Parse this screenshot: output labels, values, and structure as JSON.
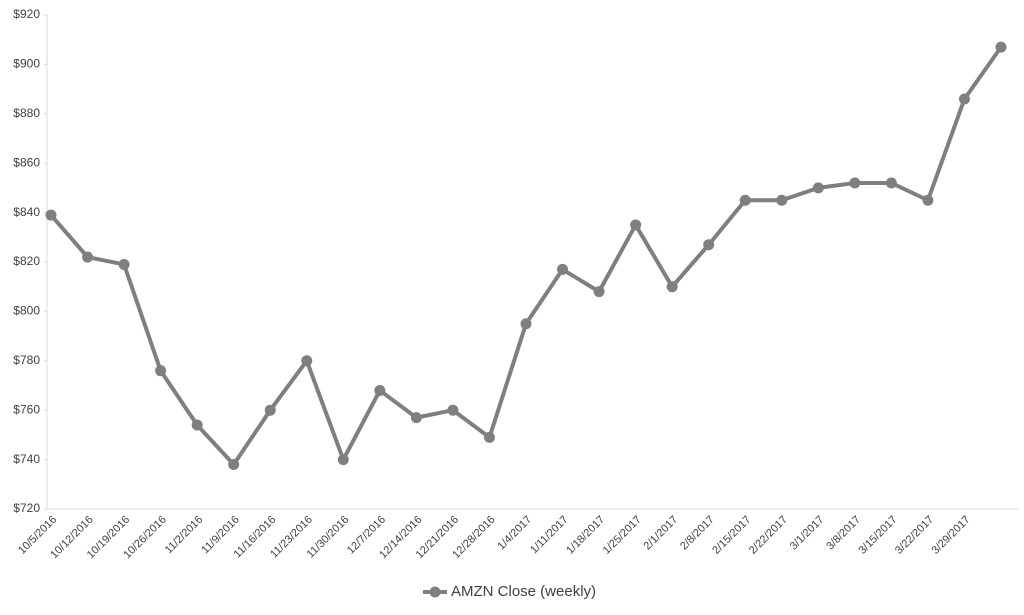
{
  "chart_data": {
    "type": "line",
    "categories": [
      "10/5/2016",
      "10/12/2016",
      "10/19/2016",
      "10/26/2016",
      "11/2/2016",
      "11/9/2016",
      "11/16/2016",
      "11/23/2016",
      "11/30/2016",
      "12/7/2016",
      "12/14/2016",
      "12/21/2016",
      "12/28/2016",
      "1/4/2017",
      "1/11/2017",
      "1/18/2017",
      "1/25/2017",
      "2/1/2017",
      "2/8/2017",
      "2/15/2017",
      "2/22/2017",
      "3/1/2017",
      "3/8/2017",
      "3/15/2017",
      "3/22/2017",
      "3/29/2017",
      null
    ],
    "series": [
      {
        "name": "AMZN Close (weekly)",
        "color": "#7f7f7f",
        "values": [
          839,
          822,
          819,
          776,
          754,
          738,
          760,
          780,
          740,
          768,
          757,
          760,
          749,
          795,
          817,
          808,
          835,
          810,
          827,
          845,
          845,
          850,
          852,
          852,
          845,
          886,
          907
        ]
      }
    ],
    "ylim": [
      720,
      920
    ],
    "yticks": [
      {
        "value": 720,
        "label": "$720"
      },
      {
        "value": 740,
        "label": "$740"
      },
      {
        "value": 760,
        "label": "$760"
      },
      {
        "value": 780,
        "label": "$780"
      },
      {
        "value": 800,
        "label": "$800"
      },
      {
        "value": 820,
        "label": "$820"
      },
      {
        "value": 840,
        "label": "$840"
      },
      {
        "value": 860,
        "label": "$860"
      },
      {
        "value": 880,
        "label": "$880"
      },
      {
        "value": 900,
        "label": "$900"
      },
      {
        "value": 920,
        "label": "$920"
      }
    ],
    "grid": false,
    "legend": "bottom"
  }
}
